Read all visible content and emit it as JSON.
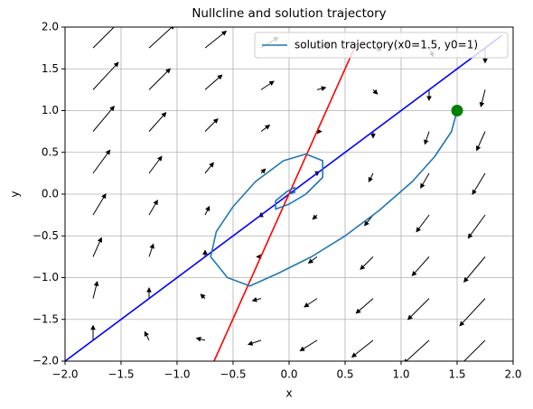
{
  "chart_data": {
    "type": "phase",
    "title": "Nullcline and solution trajectory",
    "x_label": "x",
    "y_label": "y",
    "xlim": [
      -2,
      2
    ],
    "ylim": [
      -2,
      2
    ],
    "xticks": [
      {
        "value": -2,
        "label": "−2.0"
      },
      {
        "value": -1.5,
        "label": "−1.5"
      },
      {
        "value": -1,
        "label": "−1.0"
      },
      {
        "value": -0.5,
        "label": "−0.5"
      },
      {
        "value": 0,
        "label": "0.0"
      },
      {
        "value": 0.5,
        "label": "0.5"
      },
      {
        "value": 1,
        "label": "1.0"
      },
      {
        "value": 1.5,
        "label": "1.5"
      },
      {
        "value": 2,
        "label": "2.0"
      }
    ],
    "yticks": [
      {
        "value": -2,
        "label": "−2.0"
      },
      {
        "value": -1.5,
        "label": "−1.5"
      },
      {
        "value": -1,
        "label": "−1.0"
      },
      {
        "value": -0.5,
        "label": "−0.5"
      },
      {
        "value": 0,
        "label": "0.0"
      },
      {
        "value": 0.5,
        "label": "0.5"
      },
      {
        "value": 1,
        "label": "1.0"
      },
      {
        "value": 1.5,
        "label": "1.5"
      },
      {
        "value": 2,
        "label": "2.0"
      }
    ],
    "grid": true,
    "legend": "upper right",
    "quiver": {
      "color": "#000000",
      "x": [
        -1.75,
        -1.25,
        -0.75,
        -0.25,
        0.25,
        0.75,
        1.25,
        1.75
      ],
      "y": [
        -1.75,
        -1.25,
        -0.75,
        -0.25,
        0.25,
        0.75,
        1.25,
        1.75
      ],
      "u": [
        [
          0,
          -0.75,
          -1.5,
          -2.25,
          -3,
          -3.75,
          -4.5,
          -5.25
        ],
        [
          0.75,
          0,
          -0.75,
          -1.5,
          -2.25,
          -3,
          -3.75,
          -4.5
        ],
        [
          1.5,
          0.75,
          0,
          -0.75,
          -1.5,
          -2.25,
          -3,
          -3.75
        ],
        [
          2.25,
          1.5,
          0.75,
          0,
          -0.75,
          -1.5,
          -2.25,
          -3
        ],
        [
          3,
          2.25,
          1.5,
          0.75,
          0,
          -0.75,
          -1.5,
          -2.25
        ],
        [
          3.75,
          3,
          2.25,
          1.5,
          0.75,
          0,
          -0.75,
          -1.5
        ],
        [
          4.5,
          3.75,
          3,
          2.25,
          1.5,
          0.75,
          0,
          -0.75
        ],
        [
          5.25,
          4.5,
          3.75,
          3,
          2.25,
          1.5,
          0.75,
          0
        ]
      ],
      "v": [
        [
          3.5,
          2,
          0.5,
          -1,
          -2.5,
          -4,
          -5.5,
          -7
        ],
        [
          4,
          2.5,
          1,
          -0.5,
          -2,
          -3.5,
          -5,
          -6.5
        ],
        [
          4.5,
          3,
          1.5,
          0,
          -1.5,
          -3,
          -4.5,
          -6
        ],
        [
          5,
          3.5,
          2,
          0.5,
          -1,
          -2.5,
          -4,
          -5.5
        ],
        [
          5.5,
          4,
          2.5,
          1,
          -0.5,
          -2,
          -3.5,
          -5
        ],
        [
          6,
          4.5,
          3,
          1.5,
          0,
          -1.5,
          -3,
          -4.5
        ],
        [
          6.5,
          5,
          3.5,
          2,
          0.5,
          -1,
          -2.5,
          -4
        ],
        [
          7,
          5.5,
          4,
          2.5,
          1,
          -0.5,
          -2,
          -3.5
        ]
      ]
    },
    "nullclines": [
      {
        "color": "#0000ff",
        "x": [
          -2,
          1.9
        ],
        "y": [
          -2,
          1.9
        ]
      },
      {
        "color": "#ff0000",
        "x": [
          -0.67,
          0.6
        ],
        "y": [
          -2,
          1.8
        ]
      }
    ],
    "series": [
      {
        "name": "solution trajectory(x0=1.5, y0=1)",
        "color": "#1f77b4",
        "x": [
          1.5,
          1.45,
          1.3,
          1.1,
          0.8,
          0.5,
          0.2,
          -0.1,
          -0.35,
          -0.55,
          -0.7,
          -0.65,
          -0.5,
          -0.3,
          -0.05,
          0.15,
          0.3,
          0.3,
          0.15,
          0,
          -0.12,
          -0.12,
          -0.02,
          0.05,
          0.05,
          0
        ],
        "y": [
          1,
          0.75,
          0.45,
          0.15,
          -0.2,
          -0.5,
          -0.75,
          -0.95,
          -1.1,
          -1,
          -0.75,
          -0.45,
          -0.15,
          0.15,
          0.4,
          0.48,
          0.4,
          0.2,
          0,
          -0.12,
          -0.18,
          -0.08,
          0.03,
          0.08,
          0.02,
          0
        ]
      }
    ],
    "start_point": {
      "x": 1.5,
      "y": 1,
      "color": "#008000"
    }
  }
}
